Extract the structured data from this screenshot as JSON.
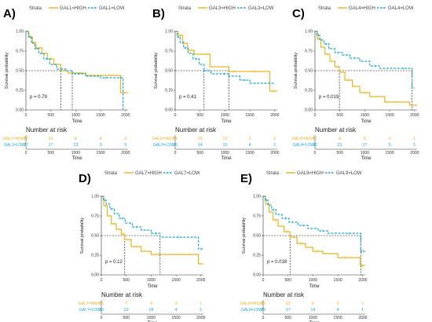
{
  "colors": {
    "high": "#e6b422",
    "low": "#1fa6cc"
  },
  "chart_data": [
    {
      "type": "line",
      "panel_label": "A)",
      "strata_title": "Strata",
      "legend": [
        "GAL1=HIGH",
        "GAL1=LOW"
      ],
      "ylabel": "Survival probability",
      "xlabel": "Time",
      "x_ticks": [
        0,
        500,
        1000,
        1500,
        2000
      ],
      "y_ticks": [
        0.0,
        0.25,
        0.5,
        0.75,
        1.0
      ],
      "y_tick_labels": [
        "0.00",
        "0.25",
        "0.50",
        "0.75",
        "1.00"
      ],
      "xlim": [
        0,
        2050
      ],
      "ylim": [
        0,
        1
      ],
      "p_value": "p = 0.79",
      "median_lines": [
        700,
        930
      ],
      "series": [
        {
          "name": "GAL1=HIGH",
          "x": [
            0,
            60,
            130,
            200,
            320,
            430,
            560,
            700,
            850,
            1000,
            1200,
            1500,
            1900,
            2050
          ],
          "y": [
            1.0,
            0.93,
            0.86,
            0.79,
            0.72,
            0.65,
            0.58,
            0.5,
            0.47,
            0.47,
            0.44,
            0.44,
            0.22,
            0.22
          ]
        },
        {
          "name": "GAL1=LOW",
          "x": [
            0,
            50,
            110,
            180,
            260,
            360,
            480,
            620,
            800,
            930,
            1200,
            1500,
            1700,
            1850,
            1950
          ],
          "y": [
            1.0,
            0.93,
            0.85,
            0.78,
            0.72,
            0.65,
            0.58,
            0.52,
            0.5,
            0.46,
            0.43,
            0.41,
            0.41,
            0.41,
            0.0
          ]
        }
      ],
      "risk_table": {
        "title": "Number at risk",
        "rows": [
          {
            "label": "GAL1=HIGH",
            "values": [
              "20",
              "12",
              "8",
              "4",
              "2"
            ]
          },
          {
            "label": "GAL1=LOW",
            "values": [
              "27",
              "17",
              "13",
              "3",
              "0"
            ]
          }
        ]
      }
    },
    {
      "type": "line",
      "panel_label": "B)",
      "strata_title": "Strata",
      "legend": [
        "GAL3=HIGH",
        "GAL3=LOW"
      ],
      "ylabel": "Survival probability",
      "xlabel": "Time",
      "x_ticks": [
        0,
        500,
        1000,
        1500,
        2000
      ],
      "y_ticks": [
        0.0,
        0.25,
        0.5,
        0.75,
        1.0
      ],
      "y_tick_labels": [
        "0.00",
        "0.25",
        "0.50",
        "0.75",
        "1.00"
      ],
      "xlim": [
        0,
        2050
      ],
      "ylim": [
        0,
        1
      ],
      "p_value": "p = 0.41",
      "median_lines": [
        580,
        1080
      ],
      "series": [
        {
          "name": "GAL3=HIGH",
          "x": [
            0,
            60,
            150,
            250,
            380,
            580,
            700,
            1080,
            1300,
            1500,
            1700,
            1900,
            2050
          ],
          "y": [
            1.0,
            0.95,
            0.85,
            0.76,
            0.71,
            0.71,
            0.55,
            0.49,
            0.49,
            0.49,
            0.49,
            0.24,
            0.24
          ]
        },
        {
          "name": "GAL3=LOW",
          "x": [
            0,
            40,
            100,
            170,
            260,
            360,
            480,
            580,
            720,
            900,
            1080,
            1300,
            1500,
            1800,
            2000
          ],
          "y": [
            1.0,
            0.93,
            0.86,
            0.79,
            0.72,
            0.65,
            0.58,
            0.5,
            0.46,
            0.46,
            0.43,
            0.38,
            0.34,
            0.34,
            0.34
          ]
        }
      ],
      "risk_table": {
        "title": "Number at risk",
        "rows": [
          {
            "label": "GAL3=HIGH",
            "values": [
              "21",
              "15",
              "12",
              "3",
              "1"
            ]
          },
          {
            "label": "GAL3=LOW",
            "values": [
              "26",
              "14",
              "10",
              "4",
              "1"
            ]
          }
        ]
      }
    },
    {
      "type": "line",
      "panel_label": "C)",
      "strata_title": "Strata",
      "legend": [
        "GAL4=HIGH",
        "GAL4=LOW"
      ],
      "ylabel": "Survival probability",
      "xlabel": "Time",
      "x_ticks": [
        0,
        500,
        1000,
        1500,
        2000
      ],
      "y_ticks": [
        0.0,
        0.25,
        0.5,
        0.75,
        1.0
      ],
      "y_tick_labels": [
        "0.00",
        "0.25",
        "0.50",
        "0.75",
        "1.00"
      ],
      "xlim": [
        0,
        2050
      ],
      "ylim": [
        0,
        1
      ],
      "p_value": "p = 0.019",
      "median_lines": [
        490,
        1950
      ],
      "series": [
        {
          "name": "GAL4=HIGH",
          "x": [
            0,
            50,
            120,
            200,
            300,
            400,
            490,
            600,
            750,
            900,
            1100,
            1400,
            1900,
            2050
          ],
          "y": [
            1.0,
            0.9,
            0.8,
            0.71,
            0.62,
            0.55,
            0.48,
            0.38,
            0.3,
            0.22,
            0.17,
            0.1,
            0.06,
            0.06
          ]
        },
        {
          "name": "GAL4=LOW",
          "x": [
            0,
            40,
            100,
            180,
            280,
            400,
            550,
            700,
            900,
            1100,
            1300,
            1600,
            1950,
            2000
          ],
          "y": [
            1.0,
            0.95,
            0.89,
            0.84,
            0.78,
            0.73,
            0.7,
            0.66,
            0.62,
            0.56,
            0.53,
            0.53,
            0.28,
            0.28
          ]
        }
      ],
      "risk_table": {
        "title": "Number at risk",
        "rows": [
          {
            "label": "GAL4=HIGH",
            "values": [
              "17",
              "8",
              "5",
              "2",
              "1"
            ]
          },
          {
            "label": "GAL4=LOW",
            "values": [
              "30",
              "21",
              "17",
              "5",
              "1"
            ]
          }
        ]
      }
    },
    {
      "type": "line",
      "panel_label": "D)",
      "strata_title": "Strata",
      "legend": [
        "GAL7=HIGH",
        "GAL7=LOW"
      ],
      "ylabel": "Survival probability",
      "xlabel": "Time",
      "x_ticks": [
        0,
        500,
        1000,
        1500,
        2000
      ],
      "y_ticks": [
        0.0,
        0.25,
        0.5,
        0.75,
        1.0
      ],
      "y_tick_labels": [
        "0.00",
        "0.25",
        "0.50",
        "0.75",
        "1.00"
      ],
      "xlim": [
        0,
        2050
      ],
      "ylim": [
        0,
        1
      ],
      "p_value": "p = 0.12",
      "median_lines": [
        470,
        1180
      ],
      "series": [
        {
          "name": "GAL7=HIGH",
          "x": [
            0,
            50,
            120,
            200,
            300,
            400,
            470,
            600,
            800,
            1000,
            1300,
            1600,
            1950,
            2050
          ],
          "y": [
            1.0,
            0.88,
            0.75,
            0.65,
            0.58,
            0.52,
            0.45,
            0.36,
            0.3,
            0.26,
            0.26,
            0.26,
            0.14,
            0.14
          ]
        },
        {
          "name": "GAL7=LOW",
          "x": [
            0,
            40,
            100,
            170,
            260,
            360,
            480,
            620,
            800,
            1000,
            1180,
            1400,
            1700,
            1950,
            2050
          ],
          "y": [
            1.0,
            0.95,
            0.9,
            0.84,
            0.78,
            0.72,
            0.66,
            0.61,
            0.57,
            0.53,
            0.48,
            0.48,
            0.48,
            0.33,
            0.33
          ]
        }
      ],
      "risk_table": {
        "title": "Number at risk",
        "rows": [
          {
            "label": "GAL7=HIGH",
            "values": [
              "15",
              "7",
              "4",
              "3",
              "1"
            ]
          },
          {
            "label": "GAL7=LOW",
            "values": [
              "32",
              "22",
              "18",
              "4",
              "1"
            ]
          }
        ]
      }
    },
    {
      "type": "line",
      "panel_label": "E)",
      "strata_title": "Strata",
      "legend": [
        "GAL9=HIGH",
        "GAL9=LOW"
      ],
      "ylabel": "Survival probability",
      "xlabel": "Time",
      "x_ticks": [
        0,
        500,
        1000,
        1500,
        2000
      ],
      "y_ticks": [
        0.0,
        0.25,
        0.5,
        0.75,
        1.0
      ],
      "y_tick_labels": [
        "0.00",
        "0.25",
        "0.50",
        "0.75",
        "1.00"
      ],
      "xlim": [
        0,
        2050
      ],
      "ylim": [
        0,
        1
      ],
      "p_value": "p = 0.018",
      "median_lines": [
        540,
        1960
      ],
      "series": [
        {
          "name": "GAL9=HIGH",
          "x": [
            0,
            50,
            120,
            200,
            300,
            420,
            540,
            680,
            850,
            1000,
            1200,
            1500,
            1800,
            1950,
            2050
          ],
          "y": [
            1.0,
            0.9,
            0.8,
            0.7,
            0.62,
            0.55,
            0.48,
            0.4,
            0.35,
            0.3,
            0.27,
            0.22,
            0.22,
            0.12,
            0.12
          ]
        },
        {
          "name": "GAL9=LOW",
          "x": [
            0,
            40,
            100,
            170,
            260,
            380,
            520,
            700,
            900,
            1100,
            1300,
            1600,
            1850,
            1960,
            2050
          ],
          "y": [
            1.0,
            0.95,
            0.89,
            0.83,
            0.77,
            0.72,
            0.67,
            0.63,
            0.59,
            0.56,
            0.53,
            0.53,
            0.53,
            0.3,
            0.3
          ]
        }
      ],
      "risk_table": {
        "title": "Number at risk",
        "rows": [
          {
            "label": "GAL9=HIGH",
            "values": [
              "22",
              "12",
              "6",
              "3",
              "1"
            ]
          },
          {
            "label": "GAL9=LOW",
            "values": [
              "25",
              "17",
              "14",
              "4",
              "1"
            ]
          }
        ]
      }
    }
  ]
}
